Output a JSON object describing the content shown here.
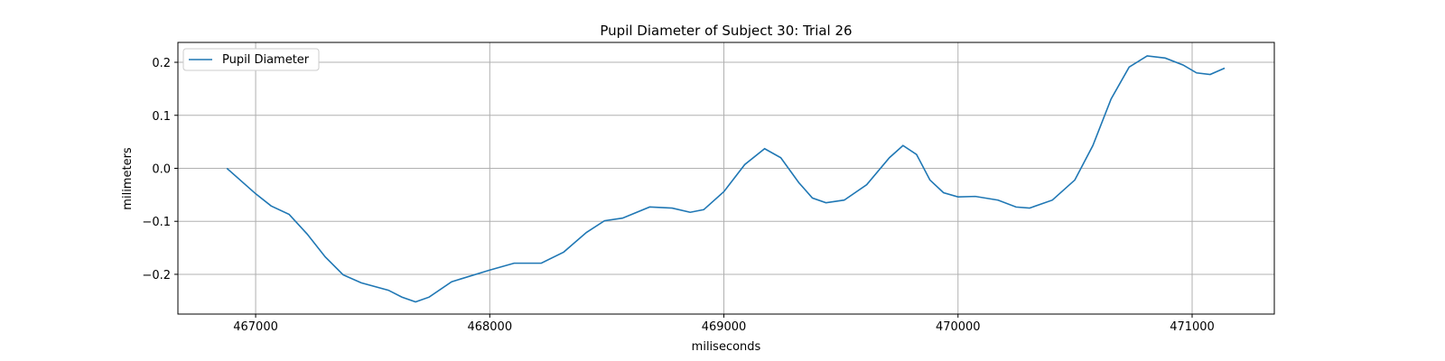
{
  "chart_data": {
    "type": "line",
    "title": "Pupil Diameter of Subject 30: Trial 26",
    "xlabel": "miliseconds",
    "ylabel": "milimeters",
    "x": [
      466877,
      467000,
      467066,
      467143,
      467220,
      467297,
      467374,
      467451,
      467567,
      467625,
      467683,
      467741,
      467837,
      468000,
      468104,
      468220,
      468316,
      468413,
      468490,
      468567,
      468683,
      468779,
      468856,
      468914,
      469000,
      469089,
      469174,
      469243,
      469320,
      469378,
      469436,
      469514,
      469610,
      469707,
      469765,
      469823,
      469880,
      469938,
      470000,
      470074,
      470171,
      470248,
      470306,
      470403,
      470499,
      470576,
      470654,
      470731,
      470808,
      470885,
      470961,
      471019,
      471077,
      471139
    ],
    "series": [
      {
        "name": "Pupil Diameter",
        "color": "#1f77b4",
        "values": [
          0.0,
          -0.048,
          -0.071,
          -0.087,
          -0.124,
          -0.167,
          -0.201,
          -0.216,
          -0.23,
          -0.243,
          -0.252,
          -0.243,
          -0.214,
          -0.192,
          -0.179,
          -0.179,
          -0.158,
          -0.121,
          -0.099,
          -0.094,
          -0.073,
          -0.075,
          -0.083,
          -0.078,
          -0.044,
          0.007,
          0.037,
          0.02,
          -0.027,
          -0.056,
          -0.065,
          -0.06,
          -0.031,
          0.02,
          0.043,
          0.026,
          -0.022,
          -0.046,
          -0.054,
          -0.053,
          -0.06,
          -0.073,
          -0.075,
          -0.06,
          -0.022,
          0.043,
          0.131,
          0.191,
          0.212,
          0.208,
          0.195,
          0.18,
          0.177,
          0.189
        ]
      }
    ],
    "xlim": [
      466668,
      471351
    ],
    "ylim": [
      -0.275,
      0.2375
    ],
    "xticks": [
      467000,
      468000,
      469000,
      470000,
      471000
    ],
    "yticks": [
      {
        "value": -0.2,
        "label": "−0.2"
      },
      {
        "value": -0.1,
        "label": "−0.1"
      },
      {
        "value": 0,
        "label": "0.0"
      },
      0.1,
      0.2
    ],
    "grid": true,
    "legend": "upper left"
  }
}
